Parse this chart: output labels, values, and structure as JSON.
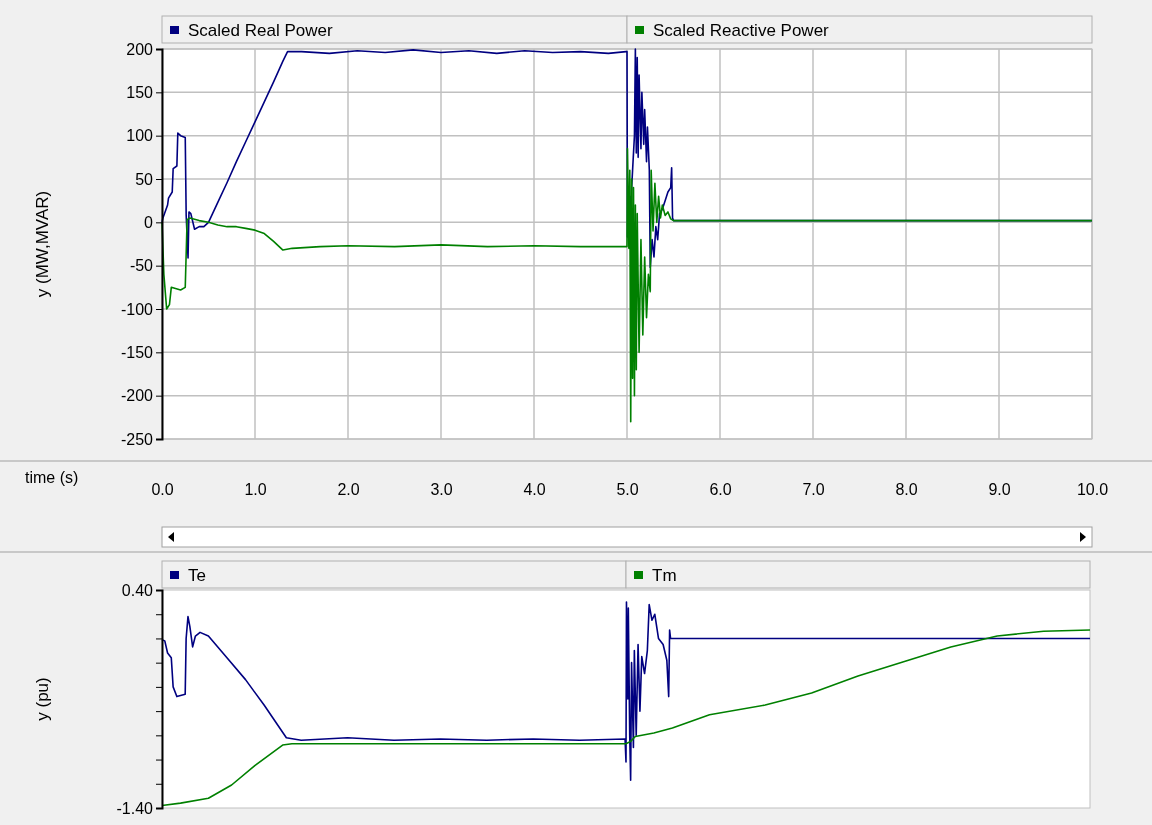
{
  "chart_data": [
    {
      "type": "line",
      "xlabel": "time (s)",
      "ylabel": "y (MW,MVAR)",
      "legend": "top",
      "grid": true,
      "line_style": "solid",
      "marker": "none",
      "xlim": [
        0,
        10
      ],
      "xticks": [
        {
          "value": 0,
          "label": "0.0"
        },
        {
          "value": 1,
          "label": "1.0"
        },
        {
          "value": 2,
          "label": "2.0"
        },
        {
          "value": 3,
          "label": "3.0"
        },
        {
          "value": 4,
          "label": "4.0"
        },
        {
          "value": 5,
          "label": "5.0"
        },
        {
          "value": 6,
          "label": "6.0"
        },
        {
          "value": 7,
          "label": "7.0"
        },
        {
          "value": 8,
          "label": "8.0"
        },
        {
          "value": 9,
          "label": "9.0"
        },
        {
          "value": 10,
          "label": "10.0"
        }
      ],
      "ylim": [
        -250,
        200
      ],
      "yticks": [
        -250,
        -200,
        -150,
        -100,
        -50,
        0,
        50,
        100,
        150,
        200
      ],
      "series": [
        {
          "name": "Scaled Real Power",
          "color": "#000080",
          "x": [
            0,
            0.01,
            0.06,
            0.07,
            0.11,
            0.12,
            0.16,
            0.17,
            0.2,
            0.25,
            0.26,
            0.28,
            0.29,
            0.31,
            0.35,
            0.4,
            0.45,
            0.5,
            0.6,
            0.7,
            0.8,
            0.9,
            1.0,
            1.1,
            1.2,
            1.3,
            1.35,
            1.5,
            1.8,
            2.1,
            2.4,
            2.7,
            3.0,
            3.3,
            3.6,
            3.9,
            4.2,
            4.5,
            4.8,
            4.99,
            5.0,
            5.005,
            5.02,
            5.03,
            5.04,
            5.05,
            5.06,
            5.08,
            5.09,
            5.1,
            5.11,
            5.12,
            5.13,
            5.15,
            5.16,
            5.18,
            5.19,
            5.21,
            5.22,
            5.24,
            5.25,
            5.27,
            5.29,
            5.31,
            5.33,
            5.35,
            5.38,
            5.41,
            5.44,
            5.47,
            5.48,
            5.49,
            5.5,
            10
          ],
          "values": [
            0,
            5,
            20,
            28,
            35,
            62,
            65,
            103,
            100,
            98,
            8,
            -41,
            12,
            10,
            -8,
            -5,
            -5,
            0,
            23,
            46,
            70,
            93,
            116,
            139,
            162,
            186,
            197,
            197,
            195,
            198,
            196,
            199,
            196,
            198,
            195,
            198,
            196,
            197,
            195,
            197,
            197,
            -17,
            null,
            30,
            -15,
            40,
            60,
            100,
            200,
            80,
            190,
            75,
            170,
            85,
            150,
            90,
            130,
            70,
            110,
            60,
            -52,
            -20,
            -40,
            -5,
            -20,
            10,
            15,
            25,
            35,
            40,
            63,
            5,
            2,
            2
          ]
        },
        {
          "name": "Scaled Reactive Power",
          "color": "#008000",
          "x": [
            0,
            0.02,
            0.05,
            0.08,
            0.1,
            0.2,
            0.25,
            0.27,
            0.3,
            0.4,
            0.5,
            0.6,
            0.7,
            0.8,
            0.9,
            1.0,
            1.1,
            1.2,
            1.3,
            1.4,
            1.7,
            2.0,
            2.5,
            3.0,
            3.5,
            4.0,
            4.5,
            4.99,
            5.0,
            5.005,
            5.02,
            5.03,
            5.04,
            5.05,
            5.06,
            5.07,
            5.08,
            5.09,
            5.1,
            5.11,
            5.13,
            5.15,
            5.17,
            5.19,
            5.21,
            5.23,
            5.25,
            5.26,
            5.28,
            5.3,
            5.32,
            5.34,
            5.36,
            5.38,
            5.41,
            5.44,
            5.47,
            5.5,
            10
          ],
          "values": [
            0,
            -60,
            -100,
            -95,
            -75,
            -78,
            -75,
            3,
            5,
            2,
            0,
            -3,
            -5,
            -5,
            -7,
            -9,
            -13,
            -22,
            -32,
            -30,
            -28,
            -27,
            -28,
            -26,
            -28,
            -27,
            -28,
            -28,
            -28,
            85,
            -30,
            60,
            -230,
            50,
            -180,
            40,
            -200,
            20,
            -170,
            10,
            -150,
            -20,
            -130,
            -40,
            -110,
            -60,
            -80,
            60,
            -10,
            45,
            0,
            30,
            5,
            20,
            8,
            12,
            4,
            2,
            2
          ]
        }
      ]
    },
    {
      "type": "line",
      "ylabel": "y (pu)",
      "legend": "top",
      "grid": false,
      "line_style": "solid",
      "marker": "none",
      "tick_labels": "y",
      "xlim": [
        0,
        10
      ],
      "ylim": [
        -1.4,
        0.4
      ],
      "yticks": [
        {
          "value": 0.4,
          "label": "0.40"
        },
        {
          "value": 0.2,
          "label": null
        },
        {
          "value": 0,
          "label": null
        },
        {
          "value": -0.2,
          "label": null
        },
        {
          "value": -0.4,
          "label": null
        },
        {
          "value": -0.6,
          "label": null
        },
        {
          "value": -0.8,
          "label": null
        },
        {
          "value": -1.0,
          "label": null
        },
        {
          "value": -1.2,
          "label": null
        },
        {
          "value": -1.4,
          "label": "-1.40"
        }
      ],
      "series": [
        {
          "name": "Te",
          "color": "#000080",
          "x": [
            0,
            0.03,
            0.06,
            0.1,
            0.12,
            0.16,
            0.25,
            0.26,
            0.28,
            0.3,
            0.33,
            0.36,
            0.41,
            0.5,
            0.7,
            0.9,
            1.1,
            1.34,
            1.5,
            2,
            2.5,
            3,
            3.5,
            4,
            4.5,
            4.99,
            5.0,
            5.005,
            5.02,
            5.025,
            5.04,
            5.05,
            5.06,
            5.08,
            5.09,
            5.11,
            5.13,
            5.15,
            5.17,
            5.2,
            5.23,
            5.25,
            5.28,
            5.31,
            5.35,
            5.4,
            5.44,
            5.46,
            5.47,
            5.48,
            10
          ],
          "values": [
            -0.01,
            -0.02,
            -0.12,
            -0.16,
            -0.4,
            -0.48,
            -0.46,
            0.0,
            0.18,
            0.1,
            -0.07,
            0.02,
            0.05,
            0.02,
            -0.16,
            -0.34,
            -0.55,
            -0.82,
            -0.84,
            -0.82,
            -0.84,
            -0.83,
            -0.84,
            -0.83,
            -0.84,
            -0.83,
            -1.02,
            0.3,
            -0.5,
            0.25,
            -0.8,
            -1.17,
            -0.2,
            -0.9,
            -0.1,
            -0.8,
            -0.05,
            -0.6,
            -0.15,
            -0.29,
            -0.1,
            0.28,
            0.15,
            0.2,
            0.0,
            -0.05,
            -0.18,
            -0.48,
            0.07,
            0.0,
            0.0
          ]
        },
        {
          "name": "Tm",
          "color": "#008000",
          "x": [
            0,
            0.2,
            0.5,
            0.75,
            1.0,
            1.3,
            1.4,
            5.0,
            5.05,
            5.1,
            5.3,
            5.5,
            5.9,
            6.5,
            7.0,
            7.5,
            8.0,
            8.5,
            9.0,
            9.5,
            10
          ],
          "values": [
            -1.38,
            -1.36,
            -1.32,
            -1.21,
            -1.05,
            -0.88,
            -0.87,
            -0.87,
            -0.85,
            -0.81,
            -0.78,
            -0.74,
            -0.63,
            -0.55,
            -0.45,
            -0.31,
            -0.19,
            -0.07,
            0.02,
            0.06,
            0.07
          ]
        }
      ]
    }
  ]
}
